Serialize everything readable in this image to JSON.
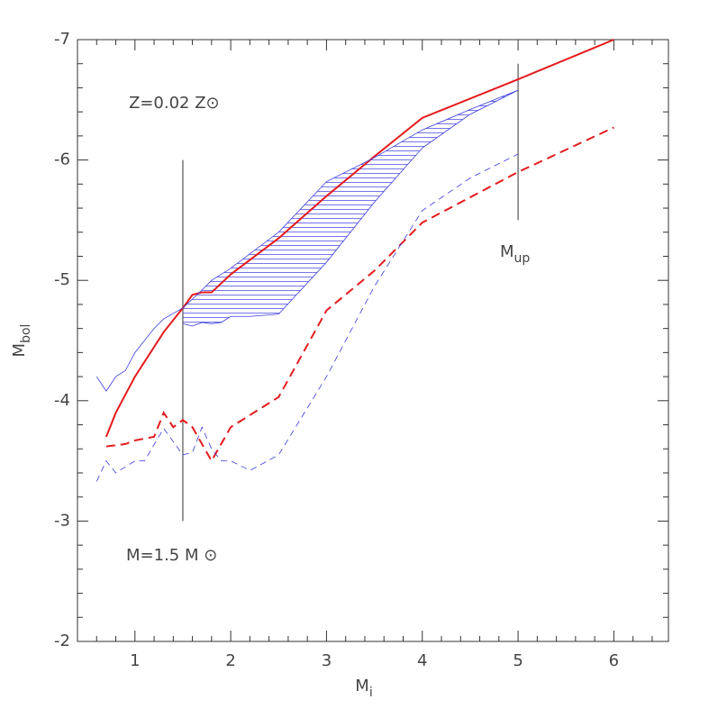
{
  "chart_data": {
    "type": "line",
    "xlabel": {
      "text": "M",
      "sub": "i"
    },
    "ylabel": {
      "text": "M",
      "sub": "bol"
    },
    "xlim": [
      0.4,
      6.57
    ],
    "xticks": [
      1,
      2,
      3,
      4,
      5,
      6
    ],
    "xminorticks": [
      0.6,
      0.8,
      1.2,
      1.4,
      1.6,
      1.8,
      2.2,
      2.4,
      2.6,
      2.8,
      3.2,
      3.4,
      3.6,
      3.8,
      4.2,
      4.4,
      4.6,
      4.8,
      5.2,
      5.4,
      5.6,
      5.8,
      6.2,
      6.4
    ],
    "ylim": [
      -2,
      -7
    ],
    "yticks": [
      -7,
      -6,
      -5,
      -4,
      -3,
      -2
    ],
    "yminorticks": [
      -6.8,
      -6.6,
      -6.4,
      -6.2,
      -5.8,
      -5.6,
      -5.4,
      -5.2,
      -4.8,
      -4.6,
      -4.4,
      -4.2,
      -3.8,
      -3.6,
      -3.4,
      -3.2,
      -2.8,
      -2.6,
      -2.4,
      -2.2
    ],
    "series": [
      {
        "color": "#e41a1c",
        "dash": "solid",
        "width": 2,
        "x": [
          0.7,
          0.8,
          1,
          1.3,
          1.5,
          1.6,
          1.7,
          1.8,
          2,
          2.5,
          3,
          3.5,
          4,
          5,
          6
        ],
        "values": [
          -3.7,
          -3.9,
          -4.2,
          -4.57,
          -4.77,
          -4.88,
          -4.9,
          -4.9,
          -5.05,
          -5.35,
          -5.7,
          -6.03,
          -6.35,
          -6.67,
          -7
        ]
      },
      {
        "color": "#e41a1c",
        "dash": "dashed",
        "width": 2,
        "x": [
          0.7,
          0.9,
          1,
          1.2,
          1.3,
          1.4,
          1.5,
          1.6,
          1.8,
          2,
          2.5,
          3,
          3.5,
          4,
          5,
          6
        ],
        "values": [
          -3.62,
          -3.64,
          -3.67,
          -3.7,
          -3.9,
          -3.78,
          -3.84,
          -3.78,
          -3.5,
          -3.78,
          -4.03,
          -4.75,
          -5.08,
          -5.48,
          -5.9,
          -6.27
        ]
      },
      {
        "color": "#3a3ae0",
        "dash": "solid",
        "width": 0.8,
        "x": [
          0.6,
          0.7,
          0.8,
          0.9,
          1,
          1.2,
          1.3,
          1.5,
          1.7,
          1.8,
          2,
          2.5,
          3,
          3.5,
          4,
          4.5,
          5
        ],
        "values": [
          -4.2,
          -4.08,
          -4.2,
          -4.25,
          -4.4,
          -4.6,
          -4.68,
          -4.77,
          -4.92,
          -5.0,
          -5.1,
          -5.4,
          -5.82,
          -6.02,
          -6.25,
          -6.42,
          -6.58
        ]
      },
      {
        "color": "#3a3ae0",
        "dash": "solid",
        "width": 0.8,
        "x": [
          1.5,
          1.6,
          1.7,
          1.8,
          1.9,
          2,
          2.2,
          2.5,
          3,
          3.5,
          4,
          4.5,
          5
        ],
        "values": [
          -4.64,
          -4.62,
          -4.65,
          -4.64,
          -4.65,
          -4.7,
          -4.7,
          -4.72,
          -5.15,
          -5.65,
          -6.1,
          -6.38,
          -6.58
        ]
      },
      {
        "color": "#3a3ae0",
        "dash": "dashed",
        "width": 0.8,
        "x": [
          0.6,
          0.7,
          0.8,
          0.9,
          1,
          1.1,
          1.3,
          1.5,
          1.6,
          1.7,
          1.8,
          1.9,
          2,
          2.2,
          2.5,
          3,
          3.5,
          4,
          4.5,
          5
        ],
        "values": [
          -3.33,
          -3.5,
          -3.4,
          -3.45,
          -3.5,
          -3.5,
          -3.77,
          -3.55,
          -3.57,
          -3.78,
          -3.6,
          -3.5,
          -3.5,
          -3.42,
          -3.55,
          -4.2,
          -4.95,
          -5.58,
          -5.85,
          -6.05
        ]
      }
    ],
    "vlines": [
      {
        "x": 1.5,
        "y": [
          -3,
          -6
        ]
      },
      {
        "x": 5,
        "y": [
          -5.5,
          -6.8
        ]
      }
    ],
    "annotations": [
      {
        "text": "Z=0.02  Z⊙"
      },
      {
        "text": "M=1.5  M ⊙"
      },
      {
        "text": "M",
        "sub": "up"
      }
    ]
  }
}
